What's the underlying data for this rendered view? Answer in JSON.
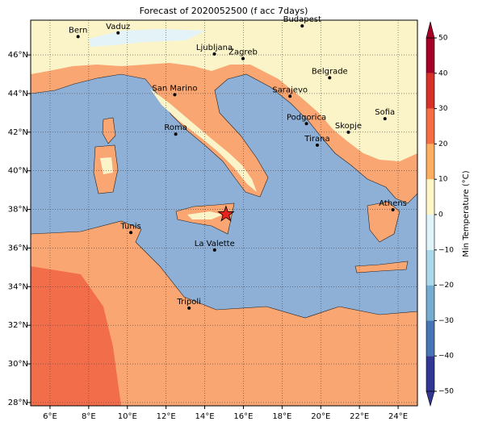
{
  "title": "Forecast of 2020052500 (f acc 7days)",
  "map": {
    "xlim": [
      5.0,
      25.0
    ],
    "ylim": [
      27.83,
      47.8
    ],
    "xticks": [
      {
        "value": 6,
        "label": "6°E"
      },
      {
        "value": 8,
        "label": "8°E"
      },
      {
        "value": 10,
        "label": "10°E"
      },
      {
        "value": 12,
        "label": "12°E"
      },
      {
        "value": 14,
        "label": "14°E"
      },
      {
        "value": 16,
        "label": "16°E"
      },
      {
        "value": 18,
        "label": "18°E"
      },
      {
        "value": 20,
        "label": "20°E"
      },
      {
        "value": 22,
        "label": "22°E"
      },
      {
        "value": 24,
        "label": "24°E"
      }
    ],
    "yticks": [
      {
        "value": 28,
        "label": "28°N"
      },
      {
        "value": 30,
        "label": "30°N"
      },
      {
        "value": 32,
        "label": "32°N"
      },
      {
        "value": 34,
        "label": "34°N"
      },
      {
        "value": 36,
        "label": "36°N"
      },
      {
        "value": 38,
        "label": "38°N"
      },
      {
        "value": 40,
        "label": "40°N"
      },
      {
        "value": 42,
        "label": "42°N"
      },
      {
        "value": 44,
        "label": "44°N"
      },
      {
        "value": 46,
        "label": "46°N"
      }
    ],
    "grid": true,
    "cities": [
      {
        "name": "Bern",
        "lon": 7.45,
        "lat": 46.95
      },
      {
        "name": "Vaduz",
        "lon": 9.52,
        "lat": 47.14
      },
      {
        "name": "Budapest",
        "lon": 19.04,
        "lat": 47.5
      },
      {
        "name": "Ljubljana",
        "lon": 14.5,
        "lat": 46.05
      },
      {
        "name": "Zagreb",
        "lon": 15.98,
        "lat": 45.81
      },
      {
        "name": "Belgrade",
        "lon": 20.46,
        "lat": 44.82
      },
      {
        "name": "San Marino",
        "lon": 12.45,
        "lat": 43.94
      },
      {
        "name": "Sarajevo",
        "lon": 18.41,
        "lat": 43.86
      },
      {
        "name": "Sofia",
        "lon": 23.32,
        "lat": 42.7
      },
      {
        "name": "Roma",
        "lon": 12.5,
        "lat": 41.9
      },
      {
        "name": "Podgorica",
        "lon": 19.26,
        "lat": 42.44
      },
      {
        "name": "Skopje",
        "lon": 21.43,
        "lat": 42.0
      },
      {
        "name": "Tirana",
        "lon": 19.82,
        "lat": 41.33
      },
      {
        "name": "Athens",
        "lon": 23.73,
        "lat": 37.98
      },
      {
        "name": "Tunis",
        "lon": 10.18,
        "lat": 36.8
      },
      {
        "name": "La Valette",
        "lon": 14.51,
        "lat": 35.9
      },
      {
        "name": "Tripoli",
        "lon": 13.19,
        "lat": 32.89
      }
    ],
    "marker": {
      "lon": 15.1,
      "lat": 37.75,
      "color": "#e8231f"
    }
  },
  "colorbar": {
    "label": "Min Temperature (°C)",
    "lim": [
      -50,
      50
    ],
    "ticks": [
      {
        "value": -50,
        "label": "−50"
      },
      {
        "value": -40,
        "label": "−40"
      },
      {
        "value": -30,
        "label": "−30"
      },
      {
        "value": -20,
        "label": "−20"
      },
      {
        "value": -10,
        "label": "−10"
      },
      0,
      10,
      20,
      30,
      40,
      50
    ],
    "colors": [
      "#313695",
      "#4575b4",
      "#74add1",
      "#abd9e9",
      "#e0f3f8",
      "#fef6c6",
      "#fdae61",
      "#f46d43",
      "#d73027",
      "#a50026"
    ]
  }
}
